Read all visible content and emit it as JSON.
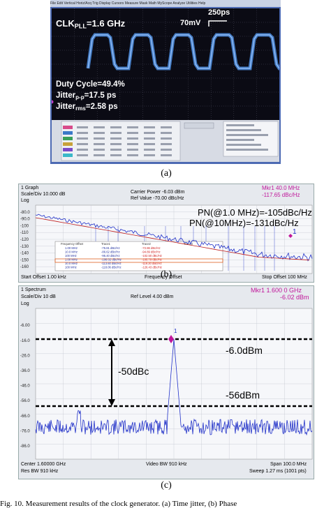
{
  "panel_a": {
    "menu_items": [
      "File",
      "Edit",
      "Vertical",
      "Horiz/Acq",
      "Trig",
      "Display",
      "Cursors",
      "Measure",
      "Mask",
      "Math",
      "MyScope",
      "Analyze",
      "Utilities",
      "Help"
    ],
    "clk_label": "CLK",
    "clk_sub": "PLL",
    "clk_value": "=1.6 GHz",
    "time_scale": "250ps",
    "volt_scale": "70mV",
    "duty_cycle": "Duty Cycle=49.4%",
    "jitter_pp_label": "Jitter",
    "jitter_pp_sub": "p-p",
    "jitter_pp_value": "=17.5 ps",
    "jitter_rms_label": "Jitter",
    "jitter_rms_sub": "rms",
    "jitter_rms_value": "=2.58 ps",
    "caption": "(a)"
  },
  "panel_b": {
    "graph_label": "1 Graph",
    "scale": "Scale/Div 10.000 dB",
    "log": "Log",
    "carrier_power": "Carrier Power -6.03 dBm",
    "ref_value": "Ref Value -70.00 dBc/Hz",
    "marker_title": "Mkr1  40.0 MHz",
    "marker_value": "-117.65 dBc/Hz",
    "pn1": "PN(@1.0 MHz)=-105dBc/Hz",
    "pn2": "PN(@10MHz)=-131dBc/Hz",
    "marker_num": "1",
    "start_offset": "Start Offset 1.00 kHz",
    "axis_label": "Frequency Offset",
    "stop_offset": "Stop Offset 100 MHz",
    "caption": "(b)",
    "ticks": [
      "-80.0",
      "-90.0",
      "-100",
      "-110",
      "-120",
      "-130",
      "-140",
      "-150",
      "-160"
    ],
    "table_headers": [
      "Frequency Offset",
      "Trace1",
      "Trace2",
      "Trace3"
    ],
    "table_rows": [
      [
        "1.00 MHz",
        "-75.81 dBc/Hz",
        "-72.86 dBc/Hz"
      ],
      [
        "10.0 MHz",
        "-86.62 dBc/Hz",
        "-94.89 dBc/Hz"
      ],
      [
        "100 MHz",
        "-95.40 dBc/Hz",
        "-102.50 dBc/Hz"
      ],
      [
        "1.00 MHz",
        "-106.02 dBc/Hz",
        "-105.79 dBc/Hz"
      ],
      [
        "10.0 MHz",
        "-113.60 dBc/Hz",
        "-119.20 dBc/Hz"
      ],
      [
        "100 MHz",
        "-118.06 dBc/Hz",
        "-126.43 dBc/Hz"
      ]
    ]
  },
  "panel_c": {
    "spectrum_label": "1 Spectrum",
    "scale": "Scale/Div 10 dB",
    "log": "Log",
    "ref_level": "Ref Level 4.00 dBm",
    "marker_title": "Mkr1  1.600 0 GHz",
    "marker_value": "-6.02 dBm",
    "marker_num": "1",
    "delta_label": "-50dBc",
    "level1": "-6.0dBm",
    "level2": "-56dBm",
    "center": "Center 1.60000 GHz",
    "res_bw": "Res BW 910 kHz",
    "video_bw": "Video BW 910 kHz",
    "span": "Span 100.0 MHz",
    "sweep": "Sweep 1.27 ms (1001 pts)",
    "caption": "(c)",
    "ticks": [
      "-6.00",
      "-16.0",
      "-26.0",
      "-36.0",
      "-46.0",
      "-56.0",
      "-66.0",
      "-76.0",
      "-86.0"
    ]
  },
  "figure_caption": "Fig. 10.   Measurement results of the clock generator. (a) Time jitter, (b) Phase"
}
